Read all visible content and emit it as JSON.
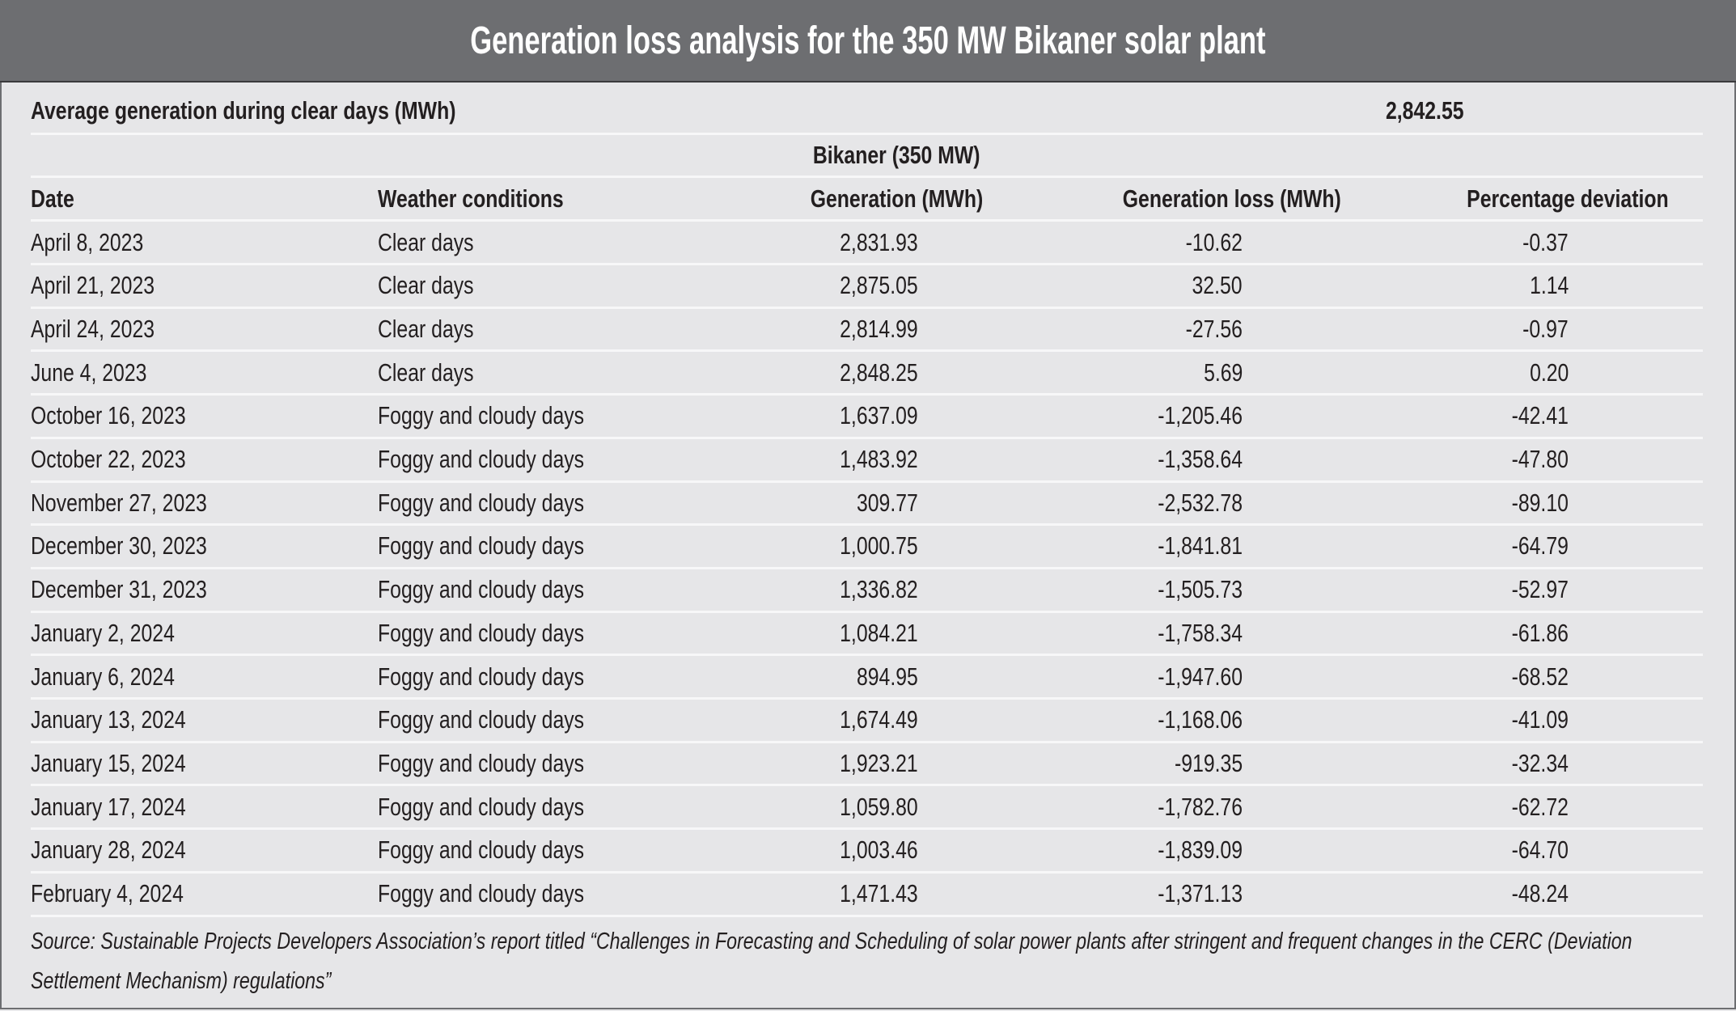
{
  "title": "Generation loss analysis for the 350 MW Bikaner solar plant",
  "average": {
    "label": "Average generation during clear days (MWh)",
    "value": "2,842.55"
  },
  "group_header": "Bikaner (350 MW)",
  "columns": [
    "Date",
    "Weather conditions",
    "Generation (MWh)",
    "Generation loss (MWh)",
    "Percentage deviation"
  ],
  "rows": [
    [
      "April 8, 2023",
      "Clear days",
      "2,831.93",
      "-10.62",
      "-0.37"
    ],
    [
      "April 21, 2023",
      "Clear days",
      "2,875.05",
      "32.50",
      "1.14"
    ],
    [
      "April 24, 2023",
      "Clear days",
      "2,814.99",
      "-27.56",
      "-0.97"
    ],
    [
      "June 4, 2023",
      "Clear days",
      "2,848.25",
      "5.69",
      "0.20"
    ],
    [
      "October 16, 2023",
      "Foggy and cloudy days",
      "1,637.09",
      "-1,205.46",
      "-42.41"
    ],
    [
      "October 22, 2023",
      "Foggy and cloudy days",
      "1,483.92",
      "-1,358.64",
      "-47.80"
    ],
    [
      "November 27, 2023",
      "Foggy and cloudy days",
      "309.77",
      "-2,532.78",
      "-89.10"
    ],
    [
      "December 30, 2023",
      "Foggy and cloudy days",
      "1,000.75",
      "-1,841.81",
      "-64.79"
    ],
    [
      "December 31, 2023",
      "Foggy and cloudy days",
      "1,336.82",
      "-1,505.73",
      "-52.97"
    ],
    [
      "January 2, 2024",
      "Foggy and cloudy days",
      "1,084.21",
      "-1,758.34",
      "-61.86"
    ],
    [
      "January 6, 2024",
      "Foggy and cloudy days",
      "894.95",
      "-1,947.60",
      "-68.52"
    ],
    [
      "January 13, 2024",
      "Foggy and cloudy days",
      "1,674.49",
      "-1,168.06",
      "-41.09"
    ],
    [
      "January 15, 2024",
      "Foggy and cloudy days",
      "1,923.21",
      "-919.35",
      "-32.34"
    ],
    [
      "January 17, 2024",
      "Foggy and cloudy days",
      "1,059.80",
      "-1,782.76",
      "-62.72"
    ],
    [
      "January 28, 2024",
      "Foggy and cloudy days",
      "1,003.46",
      "-1,839.09",
      "-64.70"
    ],
    [
      "February 4, 2024",
      "Foggy and cloudy days",
      "1,471.43",
      "-1,371.13",
      "-48.24"
    ]
  ],
  "source": "Source: Sustainable Projects Developers Association’s report titled “Challenges in Forecasting and Scheduling of solar power plants after stringent and frequent changes in the CERC (Deviation Settlement Mechanism) regulations”",
  "colors": {
    "header_bg": "#6d6e71",
    "body_bg": "#e6e6e8",
    "text": "#231f20"
  }
}
